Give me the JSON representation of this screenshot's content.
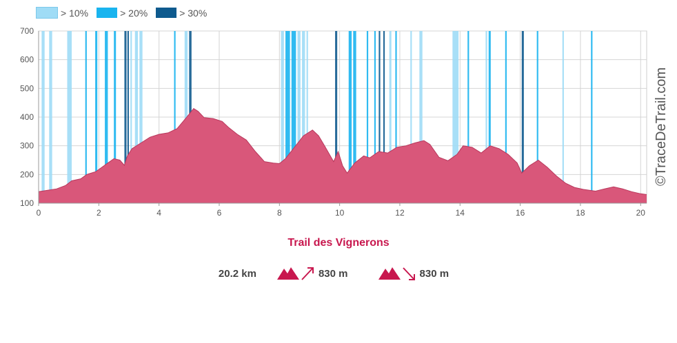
{
  "legend": [
    {
      "label": "> 10%",
      "color": "#9fdcf6"
    },
    {
      "label": "> 20%",
      "color": "#19b4ef"
    },
    {
      "label": "> 30%",
      "color": "#0e5a8e"
    }
  ],
  "watermark": "©TraceDeTrail.com",
  "stats": {
    "distance": "20.2 km",
    "ascent": "830 m",
    "descent": "830 m",
    "mountain_icon": "mountain-icon",
    "up_arrow_icon": "arrow-up-right-icon",
    "down_arrow_icon": "arrow-down-right-icon"
  },
  "chart_data": {
    "type": "area",
    "title": "Trail des Vignerons",
    "xlabel": "",
    "ylabel": "",
    "xlim": [
      0,
      20.2
    ],
    "ylim": [
      100,
      700
    ],
    "x_ticks": [
      0,
      2,
      4,
      6,
      8,
      10,
      12,
      14,
      16,
      18,
      20
    ],
    "y_ticks": [
      100,
      200,
      300,
      400,
      500,
      600,
      700
    ],
    "grid": true,
    "fill_color": "#d9577a",
    "line_color": "#b8385c",
    "profile": [
      [
        0,
        140
      ],
      [
        0.3,
        145
      ],
      [
        0.6,
        150
      ],
      [
        0.9,
        162
      ],
      [
        1.1,
        178
      ],
      [
        1.4,
        185
      ],
      [
        1.6,
        200
      ],
      [
        1.9,
        210
      ],
      [
        2.1,
        225
      ],
      [
        2.3,
        240
      ],
      [
        2.5,
        255
      ],
      [
        2.7,
        250
      ],
      [
        2.85,
        232
      ],
      [
        2.95,
        265
      ],
      [
        3.1,
        290
      ],
      [
        3.4,
        310
      ],
      [
        3.7,
        330
      ],
      [
        4.0,
        340
      ],
      [
        4.3,
        345
      ],
      [
        4.6,
        360
      ],
      [
        4.8,
        385
      ],
      [
        5.0,
        410
      ],
      [
        5.15,
        430
      ],
      [
        5.3,
        420
      ],
      [
        5.5,
        398
      ],
      [
        5.8,
        395
      ],
      [
        6.1,
        385
      ],
      [
        6.3,
        365
      ],
      [
        6.6,
        340
      ],
      [
        6.9,
        320
      ],
      [
        7.2,
        280
      ],
      [
        7.5,
        245
      ],
      [
        7.8,
        240
      ],
      [
        8.0,
        238
      ],
      [
        8.2,
        255
      ],
      [
        8.5,
        295
      ],
      [
        8.8,
        335
      ],
      [
        9.1,
        355
      ],
      [
        9.3,
        335
      ],
      [
        9.5,
        300
      ],
      [
        9.8,
        245
      ],
      [
        9.95,
        280
      ],
      [
        10.1,
        230
      ],
      [
        10.25,
        205
      ],
      [
        10.5,
        240
      ],
      [
        10.8,
        265
      ],
      [
        11.0,
        258
      ],
      [
        11.3,
        280
      ],
      [
        11.6,
        275
      ],
      [
        11.9,
        295
      ],
      [
        12.2,
        300
      ],
      [
        12.5,
        310
      ],
      [
        12.8,
        318
      ],
      [
        13.0,
        305
      ],
      [
        13.3,
        260
      ],
      [
        13.6,
        248
      ],
      [
        13.9,
        270
      ],
      [
        14.1,
        300
      ],
      [
        14.4,
        295
      ],
      [
        14.7,
        275
      ],
      [
        15.0,
        300
      ],
      [
        15.3,
        290
      ],
      [
        15.6,
        270
      ],
      [
        15.9,
        240
      ],
      [
        16.05,
        205
      ],
      [
        16.3,
        230
      ],
      [
        16.6,
        250
      ],
      [
        16.9,
        225
      ],
      [
        17.2,
        195
      ],
      [
        17.5,
        170
      ],
      [
        17.8,
        155
      ],
      [
        18.1,
        148
      ],
      [
        18.5,
        142
      ],
      [
        18.8,
        150
      ],
      [
        19.1,
        157
      ],
      [
        19.4,
        150
      ],
      [
        19.7,
        140
      ],
      [
        20.0,
        133
      ],
      [
        20.2,
        130
      ]
    ],
    "slope_bands": [
      {
        "from": 0.1,
        "to": 0.2,
        "level": 1
      },
      {
        "from": 0.35,
        "to": 0.45,
        "level": 1
      },
      {
        "from": 0.95,
        "to": 1.1,
        "level": 1
      },
      {
        "from": 1.55,
        "to": 1.6,
        "level": 2
      },
      {
        "from": 1.88,
        "to": 1.95,
        "level": 2
      },
      {
        "from": 2.2,
        "to": 2.3,
        "level": 2
      },
      {
        "from": 2.5,
        "to": 2.57,
        "level": 2
      },
      {
        "from": 2.85,
        "to": 2.92,
        "level": 3
      },
      {
        "from": 2.95,
        "to": 3.0,
        "level": 3
      },
      {
        "from": 3.05,
        "to": 3.1,
        "level": 1
      },
      {
        "from": 3.2,
        "to": 3.3,
        "level": 1
      },
      {
        "from": 3.35,
        "to": 3.45,
        "level": 1
      },
      {
        "from": 4.5,
        "to": 4.55,
        "level": 2
      },
      {
        "from": 4.85,
        "to": 4.95,
        "level": 1
      },
      {
        "from": 5.0,
        "to": 5.08,
        "level": 3
      },
      {
        "from": 8.05,
        "to": 8.15,
        "level": 1
      },
      {
        "from": 8.2,
        "to": 8.35,
        "level": 2
      },
      {
        "from": 8.4,
        "to": 8.55,
        "level": 2
      },
      {
        "from": 8.6,
        "to": 8.7,
        "level": 1
      },
      {
        "from": 8.75,
        "to": 8.85,
        "level": 1
      },
      {
        "from": 8.9,
        "to": 8.95,
        "level": 1
      },
      {
        "from": 9.85,
        "to": 9.92,
        "level": 3
      },
      {
        "from": 10.3,
        "to": 10.4,
        "level": 2
      },
      {
        "from": 10.45,
        "to": 10.55,
        "level": 2
      },
      {
        "from": 10.9,
        "to": 10.95,
        "level": 2
      },
      {
        "from": 11.15,
        "to": 11.2,
        "level": 2
      },
      {
        "from": 11.3,
        "to": 11.35,
        "level": 3
      },
      {
        "from": 11.45,
        "to": 11.5,
        "level": 3
      },
      {
        "from": 11.65,
        "to": 11.72,
        "level": 1
      },
      {
        "from": 11.85,
        "to": 11.9,
        "level": 2
      },
      {
        "from": 12.35,
        "to": 12.4,
        "level": 1
      },
      {
        "from": 12.65,
        "to": 12.75,
        "level": 1
      },
      {
        "from": 13.75,
        "to": 13.95,
        "level": 1
      },
      {
        "from": 14.25,
        "to": 14.3,
        "level": 2
      },
      {
        "from": 14.85,
        "to": 14.9,
        "level": 1
      },
      {
        "from": 14.95,
        "to": 15.02,
        "level": 2
      },
      {
        "from": 15.5,
        "to": 15.55,
        "level": 2
      },
      {
        "from": 16.05,
        "to": 16.12,
        "level": 3
      },
      {
        "from": 16.55,
        "to": 16.6,
        "level": 2
      },
      {
        "from": 17.4,
        "to": 17.45,
        "level": 1
      },
      {
        "from": 18.35,
        "to": 18.4,
        "level": 2
      }
    ]
  }
}
